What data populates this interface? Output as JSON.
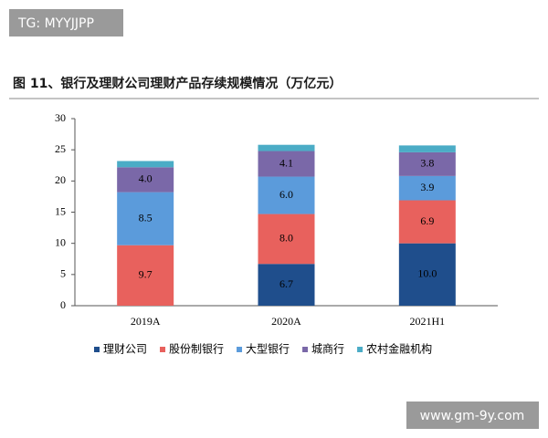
{
  "watermarks": {
    "top": "TG: MYYJJPP",
    "bottom": "www.gm-9y.com"
  },
  "chart_data": {
    "type": "stacked_bar",
    "title": "图 11、银行及理财公司理财产品存续规模情况（万亿元）",
    "categories": [
      "2019A",
      "2020A",
      "2021H1"
    ],
    "series": [
      {
        "name": "理财公司",
        "color": "#1f4e8c",
        "values": [
          0,
          6.7,
          10.0
        ],
        "value_labels": [
          null,
          "6.7",
          "10.0"
        ]
      },
      {
        "name": "股份制银行",
        "color": "#e8615d",
        "values": [
          9.7,
          8.0,
          6.9
        ],
        "value_labels": [
          "9.7",
          "8.0",
          "6.9"
        ]
      },
      {
        "name": "大型银行",
        "color": "#5b9bdb",
        "values": [
          8.5,
          6.0,
          3.9
        ],
        "value_labels": [
          "8.5",
          "6.0",
          "3.9"
        ]
      },
      {
        "name": "城商行",
        "color": "#7a68a8",
        "values": [
          4.0,
          4.1,
          3.8
        ],
        "value_labels": [
          "4.0",
          "4.1",
          "3.8"
        ]
      },
      {
        "name": "农村金融机构",
        "color": "#4bacc6",
        "values": [
          1.0,
          1.0,
          1.1
        ]
      }
    ],
    "ylim": [
      0,
      30
    ],
    "yticks": [
      0,
      5,
      10,
      15,
      20,
      25,
      30
    ],
    "grid": false,
    "legend": "bottom"
  }
}
